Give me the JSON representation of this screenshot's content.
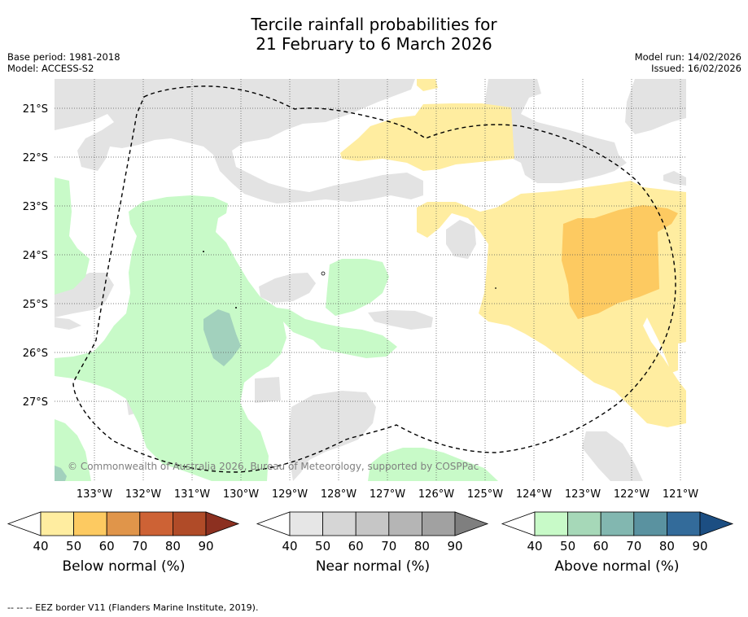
{
  "title": {
    "line1": "Tercile rainfall probabilities for",
    "line2": "21 February to 6 March 2026"
  },
  "meta": {
    "base_period": "Base period: 1981-2018",
    "model": "Model: ACCESS-S2",
    "model_run": "Model run: 14/02/2026",
    "issued": "Issued: 16/02/2026"
  },
  "map": {
    "copyright": "© Commonwealth of Australia 2026, Bureau of Meteorology, supported by COSPPac",
    "lat_labels": [
      "21°S",
      "22°S",
      "23°S",
      "24°S",
      "25°S",
      "26°S",
      "27°S"
    ],
    "lon_labels": [
      "133°W",
      "132°W",
      "131°W",
      "130°W",
      "129°W",
      "128°W",
      "127°W",
      "126°W",
      "125°W",
      "124°W",
      "123°W",
      "122°W",
      "121°W"
    ]
  },
  "legends": [
    {
      "title": "Below normal (%)",
      "ticks": [
        "40",
        "50",
        "60",
        "70",
        "80",
        "90"
      ],
      "colors": [
        "#ffeda0",
        "#fdca61",
        "#e0954a",
        "#cd6235",
        "#b04b28",
        "#8c3020"
      ]
    },
    {
      "title": "Near normal (%)",
      "ticks": [
        "40",
        "50",
        "60",
        "70",
        "80",
        "90"
      ],
      "colors": [
        "#e6e6e6",
        "#d6d6d6",
        "#c6c6c6",
        "#b5b5b5",
        "#a1a1a1",
        "#7f7f7f"
      ]
    },
    {
      "title": "Above normal (%)",
      "ticks": [
        "40",
        "50",
        "60",
        "70",
        "80",
        "90"
      ],
      "colors": [
        "#c8fac8",
        "#a6d8b8",
        "#82b7b0",
        "#5a92a0",
        "#336b9a",
        "#1c4e82"
      ]
    }
  ],
  "colors": {
    "gray": "#e3e3e3",
    "green": "#c8fac8",
    "green_dark": "#a2d1bd",
    "yellow": "#ffeda0",
    "orange": "#fdca61"
  },
  "footnote": "--  --  -- EEZ border V11 (Flanders Marine Institute, 2019)."
}
